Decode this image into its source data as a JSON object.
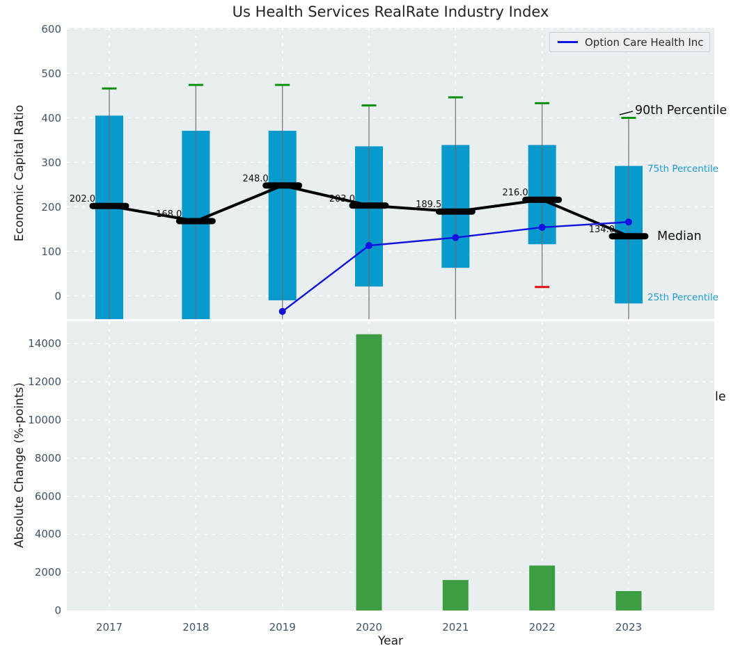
{
  "title": "Us Health Services RealRate Industry Index",
  "legend": {
    "label": "Option Care Health Inc"
  },
  "annotations": {
    "p90": "90th Percentile",
    "p75": "75th Percentile",
    "median": "Median",
    "p25": "25th Percentile",
    "clipped_fragment": "le"
  },
  "colors": {
    "plot_bg": "#e9eef0",
    "grid": "#ffffff",
    "box_fill": "#0899cd",
    "whisker": "#6e6e6e",
    "cap_high": "#0a8f0a",
    "cap_low": "#e60d0d",
    "median": "#000000",
    "company_line": "#1111e0",
    "bar_fill": "#3d9d42",
    "tick_label": "#3f5467",
    "percentile_label_blue": "#1f9bd4"
  },
  "chart_data": [
    {
      "type": "boxplot",
      "ylabel": "Economic Capital Ratio",
      "categories": [
        2017,
        2018,
        2019,
        2020,
        2021,
        2022,
        2023
      ],
      "yticks": [
        0,
        100,
        200,
        300,
        400,
        500,
        600
      ],
      "ylim": [
        -52,
        602
      ],
      "grid": true,
      "boxes": [
        {
          "year": 2017,
          "whisker_high": 466,
          "q3": 405,
          "median": 202.0,
          "q1": null,
          "whisker_low": null
        },
        {
          "year": 2018,
          "whisker_high": 474,
          "q3": 371,
          "median": 168.0,
          "q1": null,
          "whisker_low": null
        },
        {
          "year": 2019,
          "whisker_high": 474,
          "q3": 371,
          "median": 248.0,
          "q1": -10,
          "whisker_low": null
        },
        {
          "year": 2020,
          "whisker_high": 428,
          "q3": 336,
          "median": 203.0,
          "q1": 21,
          "whisker_low": null
        },
        {
          "year": 2021,
          "whisker_high": 446,
          "q3": 339,
          "median": 189.5,
          "q1": 63,
          "whisker_low": null
        },
        {
          "year": 2022,
          "whisker_high": 433,
          "q3": 339,
          "median": 216.0,
          "q1": 116,
          "whisker_low": 20
        },
        {
          "year": 2023,
          "whisker_high": 400,
          "q3": 292,
          "median": 134.0,
          "q1": -17,
          "whisker_low": null
        }
      ],
      "median_labels": [
        "202.0",
        "168.0",
        "248.0",
        "203.0",
        "189.5",
        "216.0",
        "134.0"
      ],
      "series": [
        {
          "name": "Option Care Health Inc",
          "values": [
            null,
            null,
            -35,
            113,
            131,
            154,
            166
          ]
        }
      ],
      "legend_position": "upper right"
    },
    {
      "type": "bar",
      "ylabel": "Absolute Change (%-points)",
      "xlabel": "Year",
      "categories": [
        2017,
        2018,
        2019,
        2020,
        2021,
        2022,
        2023
      ],
      "values": [
        null,
        null,
        null,
        14500,
        1600,
        2360,
        1020
      ],
      "yticks": [
        0,
        2000,
        4000,
        6000,
        8000,
        10000,
        12000,
        14000
      ],
      "ylim": [
        0,
        15180
      ],
      "grid": true
    }
  ]
}
